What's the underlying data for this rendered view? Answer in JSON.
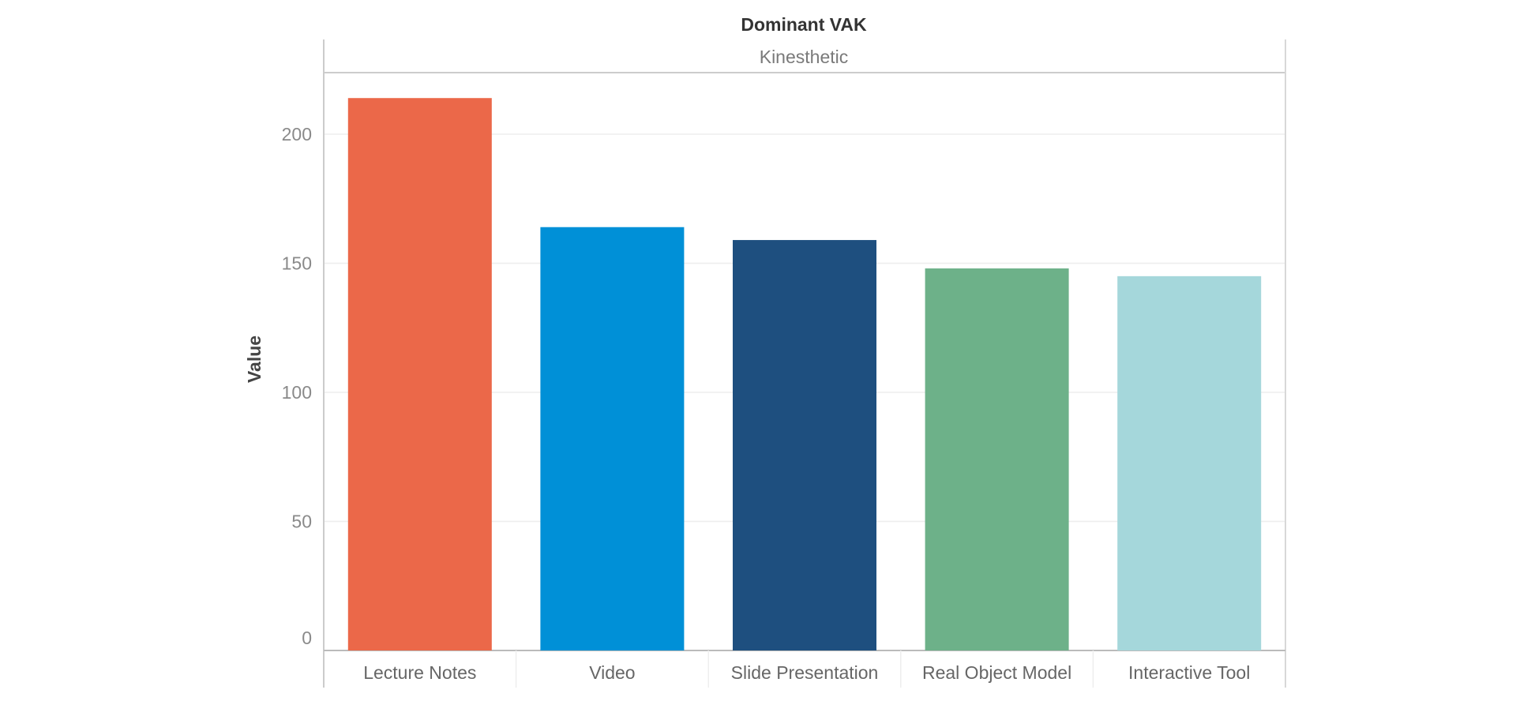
{
  "chart_data": {
    "type": "bar",
    "header_title": "Dominant VAK",
    "panel_label": "Kinesthetic",
    "ylabel": "Value",
    "xlabel": "",
    "ylim": [
      0,
      230
    ],
    "yticks": [
      0,
      50,
      100,
      150,
      200
    ],
    "grid": true,
    "categories": [
      "Lecture Notes",
      "Video",
      "Slide Presentation",
      "Real Object Model",
      "Interactive Tool"
    ],
    "values": [
      214,
      164,
      159,
      148,
      145
    ],
    "colors": [
      "#EB6849",
      "#0090D7",
      "#1E4F7F",
      "#6DB189",
      "#A5D7DB"
    ]
  }
}
